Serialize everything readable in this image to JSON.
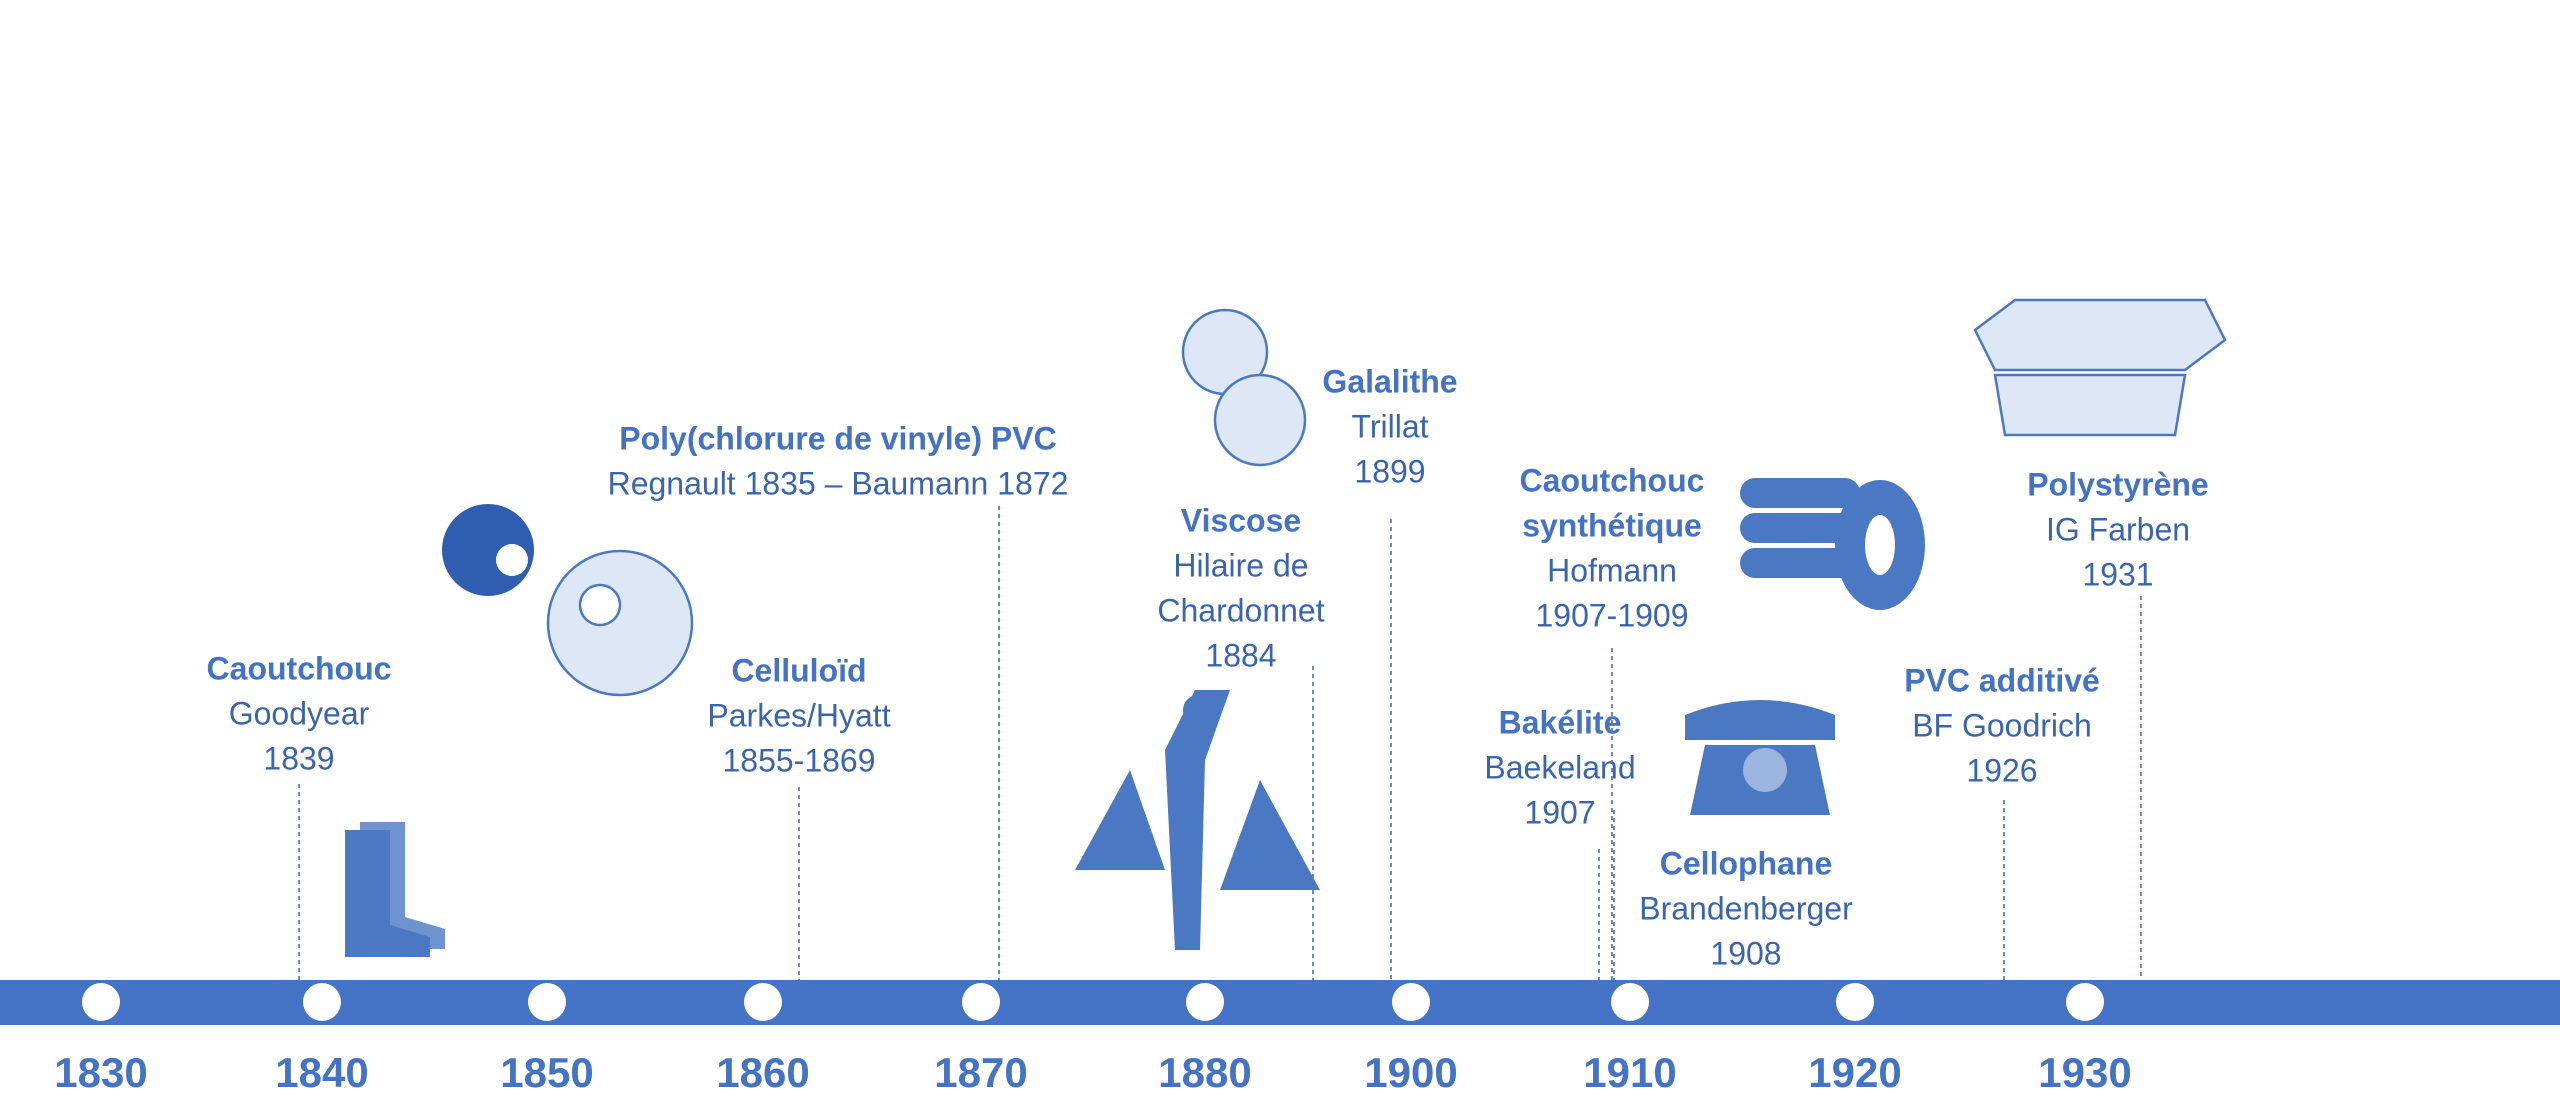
{
  "events": [
    {
      "title_lines": [
        "Caoutchouc"
      ],
      "lines": [
        "Goodyear",
        "1839"
      ]
    },
    {
      "title_lines": [
        "Poly(chlorure de vinyle) PVC"
      ],
      "lines": [
        "Regnault 1835 – Baumann 1872"
      ]
    },
    {
      "title_lines": [
        "Celluloïd"
      ],
      "lines": [
        "Parkes/Hyatt",
        "1855-1869"
      ]
    },
    {
      "title_lines": [
        "Viscose"
      ],
      "lines": [
        "Hilaire de",
        "Chardonnet",
        "1884"
      ]
    },
    {
      "title_lines": [
        "Galalithe"
      ],
      "lines": [
        "Trillat",
        "1899"
      ]
    },
    {
      "title_lines": [
        "Caoutchouc",
        "synthétique"
      ],
      "lines": [
        "Hofmann",
        "1907-1909"
      ]
    },
    {
      "title_lines": [
        "Bakélite"
      ],
      "lines": [
        "Baekeland",
        "1907"
      ]
    },
    {
      "title_lines": [
        "Cellophane"
      ],
      "lines": [
        "Brandenberger",
        "1908"
      ]
    },
    {
      "title_lines": [
        "PVC additivé"
      ],
      "lines": [
        "BF Goodrich",
        "1926"
      ]
    },
    {
      "title_lines": [
        "Polystyrène"
      ],
      "lines": [
        "IG Farben",
        "1931"
      ]
    }
  ],
  "decades": [
    "1830",
    "1840",
    "1850",
    "1860",
    "1870",
    "1880",
    "1900",
    "1910",
    "1920",
    "1930"
  ]
}
